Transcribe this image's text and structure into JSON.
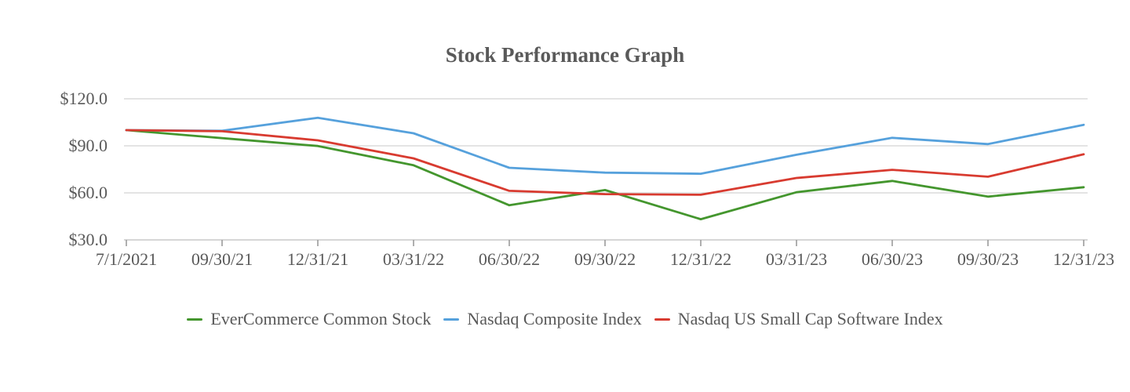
{
  "chart_data": {
    "type": "line",
    "title": "Stock Performance Graph",
    "xlabel": "",
    "ylabel": "",
    "categories": [
      "7/1/2021",
      "09/30/21",
      "12/31/21",
      "03/31/22",
      "06/30/22",
      "09/30/22",
      "12/31/22",
      "03/31/23",
      "06/30/23",
      "09/30/23",
      "12/31/23"
    ],
    "y_tick_labels": [
      "$120.0",
      "$90.0",
      "$60.0",
      "$30.0"
    ],
    "ylim": [
      30,
      120
    ],
    "y_step": 30,
    "grid": true,
    "legend_position": "bottom",
    "series": [
      {
        "name": "EverCommerce Common Stock",
        "color": "#44962E",
        "values": [
          100.0,
          94.9,
          89.9,
          77.6,
          52.1,
          61.8,
          43.2,
          60.4,
          67.6,
          57.6,
          63.6
        ]
      },
      {
        "name": "Nasdaq Composite Index",
        "color": "#56A1DC",
        "values": [
          100.0,
          99.6,
          107.9,
          98.0,
          76.0,
          72.9,
          72.2,
          84.3,
          95.1,
          91.1,
          103.4
        ]
      },
      {
        "name": "Nasdaq US Small Cap Software Index",
        "color": "#D83B30",
        "values": [
          100.0,
          99.3,
          93.5,
          82.0,
          61.3,
          59.2,
          58.8,
          69.5,
          74.7,
          70.3,
          84.6
        ]
      }
    ],
    "colors": {
      "grid": "#DBDBDB",
      "axis": "#C9C9C9",
      "tick": "#9B9B9B",
      "text": "#595959"
    }
  }
}
